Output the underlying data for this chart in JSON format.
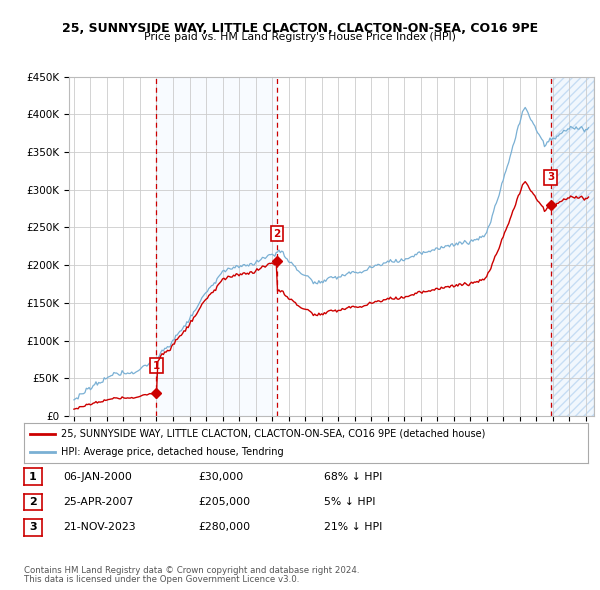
{
  "title": "25, SUNNYSIDE WAY, LITTLE CLACTON, CLACTON-ON-SEA, CO16 9PE",
  "subtitle": "Price paid vs. HM Land Registry's House Price Index (HPI)",
  "ylim": [
    0,
    450000
  ],
  "yticks": [
    0,
    50000,
    100000,
    150000,
    200000,
    250000,
    300000,
    350000,
    400000,
    450000
  ],
  "sale_floats": [
    2000.0,
    2007.29,
    2023.87
  ],
  "sale_prices": [
    30000,
    205000,
    280000
  ],
  "sale_labels": [
    "1",
    "2",
    "3"
  ],
  "sale_color": "#cc0000",
  "hpi_color": "#7ab0d4",
  "legend_label_red": "25, SUNNYSIDE WAY, LITTLE CLACTON, CLACTON-ON-SEA, CO16 9PE (detached house)",
  "legend_label_blue": "HPI: Average price, detached house, Tendring",
  "table_data": [
    [
      "1",
      "06-JAN-2000",
      "£30,000",
      "68% ↓ HPI"
    ],
    [
      "2",
      "25-APR-2007",
      "£205,000",
      "5% ↓ HPI"
    ],
    [
      "3",
      "21-NOV-2023",
      "£280,000",
      "21% ↓ HPI"
    ]
  ],
  "footnote1": "Contains HM Land Registry data © Crown copyright and database right 2024.",
  "footnote2": "This data is licensed under the Open Government Licence v3.0.",
  "background_color": "#ffffff",
  "grid_color": "#cccccc",
  "shaded_color": "#ddeeff",
  "xlim_left": 1994.7,
  "xlim_right": 2026.5
}
